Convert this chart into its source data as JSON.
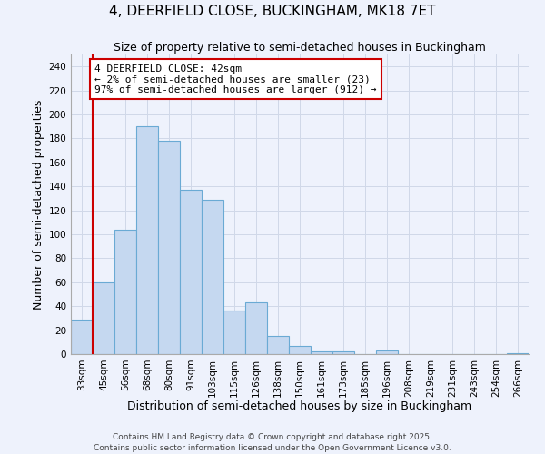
{
  "title": "4, DEERFIELD CLOSE, BUCKINGHAM, MK18 7ET",
  "subtitle": "Size of property relative to semi-detached houses in Buckingham",
  "xlabel": "Distribution of semi-detached houses by size in Buckingham",
  "ylabel": "Number of semi-detached properties",
  "footer_line1": "Contains HM Land Registry data © Crown copyright and database right 2025.",
  "footer_line2": "Contains public sector information licensed under the Open Government Licence v3.0.",
  "bin_labels": [
    "33sqm",
    "45sqm",
    "56sqm",
    "68sqm",
    "80sqm",
    "91sqm",
    "103sqm",
    "115sqm",
    "126sqm",
    "138sqm",
    "150sqm",
    "161sqm",
    "173sqm",
    "185sqm",
    "196sqm",
    "208sqm",
    "219sqm",
    "231sqm",
    "243sqm",
    "254sqm",
    "266sqm"
  ],
  "bar_values": [
    29,
    60,
    104,
    190,
    178,
    137,
    129,
    36,
    43,
    15,
    7,
    2,
    2,
    0,
    3,
    0,
    0,
    0,
    0,
    0,
    1
  ],
  "bar_color": "#c5d8f0",
  "bar_edge_color": "#6aaad4",
  "highlight_line_color": "#cc0000",
  "annotation_text": "4 DEERFIELD CLOSE: 42sqm\n← 2% of semi-detached houses are smaller (23)\n97% of semi-detached houses are larger (912) →",
  "annotation_box_color": "#ffffff",
  "annotation_box_edge_color": "#cc0000",
  "ylim": [
    0,
    250
  ],
  "yticks": [
    0,
    20,
    40,
    60,
    80,
    100,
    120,
    140,
    160,
    180,
    200,
    220,
    240
  ],
  "grid_color": "#d0d8e8",
  "background_color": "#eef2fc",
  "title_fontsize": 11,
  "subtitle_fontsize": 9,
  "axis_label_fontsize": 9,
  "tick_fontsize": 7.5
}
